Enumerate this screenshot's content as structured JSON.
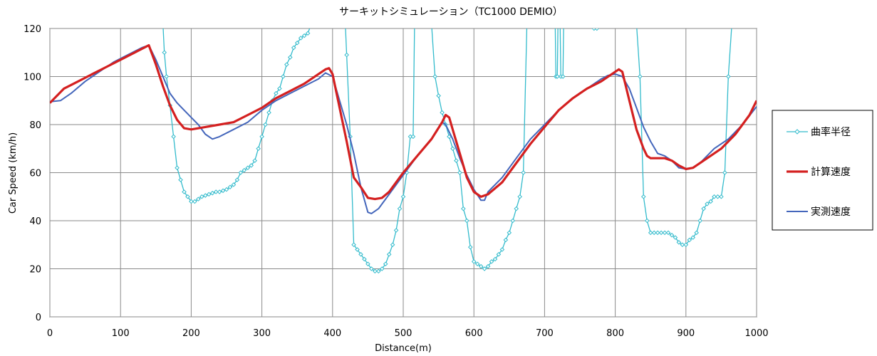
{
  "chart_data": {
    "type": "line",
    "title": "サーキットシミュレーション（TC1000 DEMIO）",
    "xlabel": "Distance(m)",
    "ylabel": "Car Speed (km/h)",
    "xlim": [
      0,
      1000
    ],
    "ylim": [
      0,
      120
    ],
    "xticks": [
      0,
      100,
      200,
      300,
      400,
      500,
      600,
      700,
      800,
      900,
      1000
    ],
    "yticks": [
      0,
      20,
      40,
      60,
      80,
      100,
      120
    ],
    "grid": true,
    "legend_position": "right",
    "series": [
      {
        "name": "曲率半径",
        "color": "#33BBCC",
        "marker": "diamond",
        "segments": [
          [
            [
              160,
              122
            ],
            [
              162,
              110
            ],
            [
              165,
              100
            ],
            [
              170,
              88
            ],
            [
              175,
              75
            ],
            [
              180,
              62
            ],
            [
              185,
              57
            ],
            [
              190,
              52
            ],
            [
              195,
              50
            ],
            [
              200,
              48
            ],
            [
              205,
              48
            ],
            [
              210,
              49
            ],
            [
              215,
              50
            ],
            [
              220,
              50.5
            ],
            [
              225,
              51
            ],
            [
              230,
              51.5
            ],
            [
              235,
              52
            ],
            [
              240,
              52
            ],
            [
              245,
              52.5
            ],
            [
              250,
              53
            ],
            [
              255,
              54
            ],
            [
              260,
              55
            ],
            [
              265,
              57
            ],
            [
              270,
              60
            ],
            [
              275,
              61
            ],
            [
              280,
              62
            ],
            [
              285,
              63
            ],
            [
              290,
              65
            ],
            [
              295,
              70
            ],
            [
              300,
              75
            ],
            [
              305,
              80
            ],
            [
              310,
              85
            ],
            [
              315,
              90
            ],
            [
              320,
              93
            ],
            [
              325,
              95
            ],
            [
              330,
              100
            ],
            [
              335,
              105
            ],
            [
              340,
              108
            ],
            [
              345,
              112
            ],
            [
              350,
              114
            ],
            [
              355,
              116
            ],
            [
              360,
              117
            ],
            [
              365,
              118
            ],
            [
              370,
              122
            ]
          ],
          [
            [
              418,
              122
            ],
            [
              420,
              109
            ],
            [
              425,
              75
            ],
            [
              430,
              30
            ],
            [
              435,
              28
            ],
            [
              440,
              26
            ],
            [
              445,
              24
            ],
            [
              450,
              22
            ],
            [
              455,
              20
            ],
            [
              460,
              19
            ],
            [
              465,
              19
            ],
            [
              470,
              20
            ],
            [
              475,
              22
            ],
            [
              480,
              26
            ],
            [
              485,
              30
            ],
            [
              490,
              36
            ],
            [
              495,
              45
            ],
            [
              500,
              50
            ],
            [
              505,
              60
            ],
            [
              510,
              75
            ],
            [
              514,
              75
            ],
            [
              516,
              122
            ]
          ],
          [
            [
              540,
              122
            ],
            [
              545,
              100
            ],
            [
              550,
              92
            ],
            [
              555,
              85
            ],
            [
              560,
              80
            ],
            [
              565,
              75
            ],
            [
              570,
              70
            ],
            [
              575,
              65
            ],
            [
              580,
              60
            ],
            [
              585,
              45
            ],
            [
              590,
              40
            ],
            [
              595,
              29
            ],
            [
              600,
              23
            ],
            [
              605,
              22
            ],
            [
              610,
              21
            ],
            [
              615,
              20
            ],
            [
              620,
              21
            ],
            [
              625,
              23
            ],
            [
              630,
              24
            ],
            [
              635,
              26
            ],
            [
              640,
              28
            ],
            [
              645,
              32
            ],
            [
              650,
              35
            ],
            [
              655,
              40
            ],
            [
              660,
              45
            ],
            [
              665,
              50
            ],
            [
              670,
              60
            ],
            [
              675,
              122
            ]
          ],
          [
            [
              715,
              122
            ],
            [
              716,
              100
            ],
            [
              718,
              100
            ],
            [
              719,
              122
            ]
          ],
          [
            [
              722,
              122
            ],
            [
              723,
              100
            ],
            [
              726,
              100
            ],
            [
              727,
              122
            ]
          ],
          [
            [
              770,
              120
            ],
            [
              774,
              120
            ]
          ],
          [
            [
              830,
              122
            ],
            [
              835,
              100
            ],
            [
              840,
              50
            ],
            [
              845,
              40
            ],
            [
              850,
              35
            ],
            [
              855,
              35
            ],
            [
              860,
              35
            ],
            [
              865,
              35
            ],
            [
              870,
              35
            ],
            [
              875,
              35
            ],
            [
              880,
              34
            ],
            [
              885,
              33
            ],
            [
              890,
              31
            ],
            [
              895,
              30
            ],
            [
              900,
              30
            ],
            [
              905,
              32
            ],
            [
              910,
              33
            ],
            [
              915,
              35
            ],
            [
              920,
              40
            ],
            [
              925,
              45
            ],
            [
              930,
              47
            ],
            [
              935,
              48
            ],
            [
              940,
              50
            ],
            [
              945,
              50
            ],
            [
              950,
              50
            ],
            [
              955,
              60
            ],
            [
              960,
              100
            ],
            [
              965,
              122
            ]
          ]
        ]
      },
      {
        "name": "計算速度",
        "color": "#D42020",
        "points": [
          [
            0,
            89
          ],
          [
            10,
            92
          ],
          [
            20,
            95
          ],
          [
            40,
            98
          ],
          [
            60,
            101
          ],
          [
            80,
            104
          ],
          [
            100,
            107
          ],
          [
            120,
            110
          ],
          [
            140,
            113
          ],
          [
            150,
            105
          ],
          [
            160,
            96
          ],
          [
            170,
            88
          ],
          [
            180,
            82
          ],
          [
            190,
            78.5
          ],
          [
            200,
            78
          ],
          [
            220,
            79
          ],
          [
            240,
            80
          ],
          [
            260,
            81
          ],
          [
            280,
            84
          ],
          [
            300,
            87
          ],
          [
            320,
            91
          ],
          [
            340,
            94
          ],
          [
            360,
            97
          ],
          [
            380,
            101
          ],
          [
            390,
            103
          ],
          [
            395,
            103.5
          ],
          [
            400,
            101
          ],
          [
            410,
            87
          ],
          [
            420,
            73
          ],
          [
            430,
            58
          ],
          [
            440,
            54
          ],
          [
            450,
            49.5
          ],
          [
            460,
            49
          ],
          [
            470,
            49.5
          ],
          [
            480,
            52
          ],
          [
            500,
            60
          ],
          [
            520,
            67
          ],
          [
            540,
            74
          ],
          [
            555,
            81
          ],
          [
            560,
            84
          ],
          [
            565,
            83
          ],
          [
            570,
            78
          ],
          [
            580,
            68
          ],
          [
            590,
            58
          ],
          [
            600,
            52
          ],
          [
            610,
            50
          ],
          [
            620,
            51
          ],
          [
            640,
            56
          ],
          [
            660,
            64
          ],
          [
            680,
            72
          ],
          [
            700,
            79
          ],
          [
            720,
            86
          ],
          [
            740,
            91
          ],
          [
            760,
            95
          ],
          [
            780,
            98
          ],
          [
            800,
            102
          ],
          [
            805,
            103
          ],
          [
            810,
            102
          ],
          [
            820,
            90
          ],
          [
            830,
            78
          ],
          [
            840,
            70
          ],
          [
            845,
            67
          ],
          [
            850,
            66
          ],
          [
            870,
            66
          ],
          [
            880,
            65
          ],
          [
            890,
            63
          ],
          [
            900,
            61.5
          ],
          [
            910,
            62
          ],
          [
            930,
            66
          ],
          [
            950,
            70
          ],
          [
            970,
            76
          ],
          [
            990,
            84
          ],
          [
            1000,
            90
          ]
        ]
      },
      {
        "name": "実測速度",
        "color": "#4466BB",
        "points": [
          [
            0,
            89.5
          ],
          [
            15,
            90
          ],
          [
            30,
            93
          ],
          [
            50,
            98
          ],
          [
            70,
            102
          ],
          [
            90,
            106
          ],
          [
            110,
            109
          ],
          [
            130,
            112
          ],
          [
            140,
            113
          ],
          [
            150,
            107
          ],
          [
            160,
            100
          ],
          [
            170,
            93
          ],
          [
            180,
            89
          ],
          [
            190,
            86
          ],
          [
            200,
            83
          ],
          [
            210,
            80
          ],
          [
            220,
            76
          ],
          [
            230,
            74
          ],
          [
            240,
            75
          ],
          [
            260,
            78
          ],
          [
            280,
            81
          ],
          [
            300,
            86
          ],
          [
            320,
            90
          ],
          [
            340,
            93
          ],
          [
            360,
            96
          ],
          [
            380,
            99
          ],
          [
            390,
            101.5
          ],
          [
            400,
            100
          ],
          [
            410,
            90
          ],
          [
            420,
            80
          ],
          [
            430,
            68
          ],
          [
            440,
            54
          ],
          [
            450,
            43.5
          ],
          [
            455,
            43
          ],
          [
            465,
            45
          ],
          [
            480,
            51
          ],
          [
            500,
            59
          ],
          [
            520,
            67
          ],
          [
            540,
            74
          ],
          [
            555,
            81
          ],
          [
            560,
            80
          ],
          [
            570,
            74
          ],
          [
            580,
            66
          ],
          [
            590,
            59
          ],
          [
            600,
            53
          ],
          [
            610,
            48.5
          ],
          [
            615,
            48.5
          ],
          [
            620,
            52
          ],
          [
            640,
            58
          ],
          [
            660,
            66
          ],
          [
            680,
            74
          ],
          [
            700,
            80
          ],
          [
            720,
            86
          ],
          [
            740,
            91
          ],
          [
            760,
            95
          ],
          [
            780,
            99
          ],
          [
            790,
            100.5
          ],
          [
            800,
            101
          ],
          [
            810,
            100
          ],
          [
            820,
            95
          ],
          [
            830,
            87
          ],
          [
            840,
            79
          ],
          [
            850,
            73
          ],
          [
            860,
            68
          ],
          [
            870,
            67
          ],
          [
            880,
            65
          ],
          [
            890,
            62
          ],
          [
            900,
            61.5
          ],
          [
            910,
            62
          ],
          [
            920,
            64
          ],
          [
            940,
            70
          ],
          [
            960,
            74
          ],
          [
            980,
            80
          ],
          [
            1000,
            87.5
          ]
        ]
      }
    ]
  }
}
